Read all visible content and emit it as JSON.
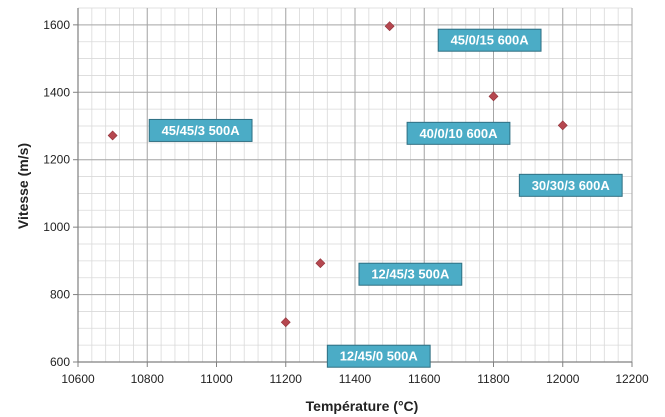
{
  "chart_data": {
    "type": "scatter",
    "xlabel": "Température (°C)",
    "ylabel": "Vitesse (m/s)",
    "xlim": [
      10600,
      12200
    ],
    "ylim": [
      600,
      1650
    ],
    "x_ticks": [
      10600,
      10800,
      11000,
      11200,
      11400,
      11600,
      11800,
      12000,
      12200
    ],
    "y_ticks": [
      600,
      800,
      1000,
      1200,
      1400,
      1600
    ],
    "grid": true,
    "marker_color": "#b5474f",
    "label_fill": "#4bacc6",
    "label_stroke": "#2f6f82",
    "points": [
      {
        "x": 10700,
        "y": 1272,
        "label": "45/45/3 500A"
      },
      {
        "x": 11200,
        "y": 718,
        "label": "12/45/0 500A"
      },
      {
        "x": 11300,
        "y": 893,
        "label": "12/45/3 500A"
      },
      {
        "x": 11500,
        "y": 1596,
        "label": "45/0/15 600A"
      },
      {
        "x": 11800,
        "y": 1388,
        "label": "40/0/10 600A"
      },
      {
        "x": 12000,
        "y": 1302,
        "label": "30/30/3 600A"
      }
    ]
  }
}
